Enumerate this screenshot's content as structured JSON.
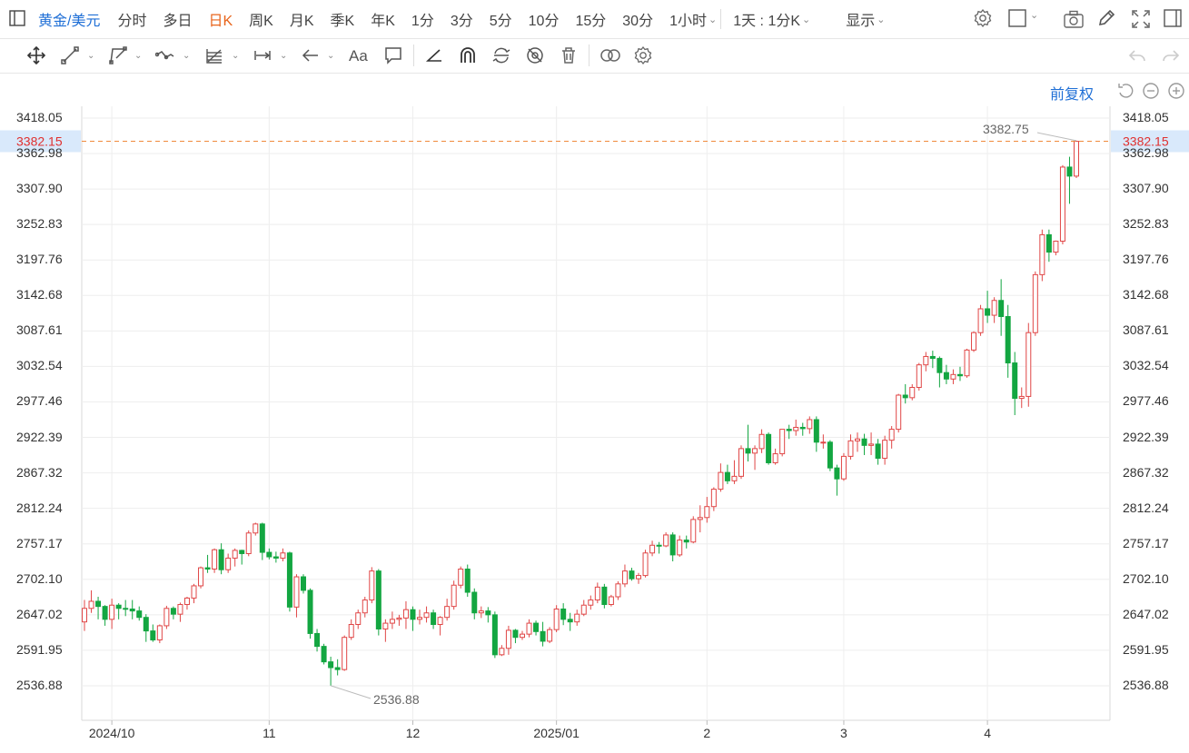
{
  "toolbar": {
    "symbol": "黄金/美元",
    "periods": [
      "分时",
      "多日",
      "日K",
      "周K",
      "月K",
      "季K",
      "年K",
      "1分",
      "3分",
      "5分",
      "10分",
      "15分",
      "30分",
      "1小时"
    ],
    "active_period": "日K",
    "interval_select": "1天 : 1分K",
    "display_label": "显示"
  },
  "adjust_label": "前复权",
  "colors": {
    "up": "#e04646",
    "down": "#13a641",
    "accent": "#1f6fd6",
    "price_line": "#f08a3c",
    "active_tab": "#e8641b"
  },
  "chart_data": {
    "type": "candlestick",
    "y_ticks": [
      "3418.05",
      "3362.98",
      "3307.90",
      "3252.83",
      "3197.76",
      "3142.68",
      "3087.61",
      "3032.54",
      "2977.46",
      "2922.39",
      "2867.32",
      "2812.24",
      "2757.17",
      "2702.10",
      "2647.02",
      "2591.95",
      "2536.88"
    ],
    "ylim": [
      2513.0,
      3440.0
    ],
    "x_labels": [
      "2024/10",
      "11",
      "12",
      "2025/01",
      "2",
      "3",
      "4"
    ],
    "current_price": "3382.15",
    "max_label": "3382.75",
    "min_label": "2536.88",
    "candles": [
      {
        "date": "2024-09-25",
        "o": 2636,
        "h": 2670,
        "l": 2622,
        "c": 2657
      },
      {
        "date": "2024-09-26",
        "o": 2657,
        "h": 2685,
        "l": 2650,
        "c": 2668
      },
      {
        "date": "2024-09-27",
        "o": 2668,
        "h": 2675,
        "l": 2640,
        "c": 2660
      },
      {
        "date": "2024-09-30",
        "o": 2660,
        "h": 2662,
        "l": 2630,
        "c": 2640
      },
      {
        "date": "2024-10-01",
        "o": 2640,
        "h": 2672,
        "l": 2625,
        "c": 2662
      },
      {
        "date": "2024-10-02",
        "o": 2662,
        "h": 2665,
        "l": 2640,
        "c": 2657
      },
      {
        "date": "2024-10-03",
        "o": 2657,
        "h": 2670,
        "l": 2645,
        "c": 2656
      },
      {
        "date": "2024-10-04",
        "o": 2656,
        "h": 2670,
        "l": 2640,
        "c": 2653
      },
      {
        "date": "2024-10-07",
        "o": 2653,
        "h": 2660,
        "l": 2638,
        "c": 2643
      },
      {
        "date": "2024-10-08",
        "o": 2643,
        "h": 2648,
        "l": 2605,
        "c": 2622
      },
      {
        "date": "2024-10-09",
        "o": 2622,
        "h": 2632,
        "l": 2605,
        "c": 2608
      },
      {
        "date": "2024-10-10",
        "o": 2608,
        "h": 2632,
        "l": 2603,
        "c": 2630
      },
      {
        "date": "2024-10-11",
        "o": 2630,
        "h": 2661,
        "l": 2625,
        "c": 2657
      },
      {
        "date": "2024-10-14",
        "o": 2657,
        "h": 2660,
        "l": 2640,
        "c": 2648
      },
      {
        "date": "2024-10-15",
        "o": 2648,
        "h": 2666,
        "l": 2636,
        "c": 2663
      },
      {
        "date": "2024-10-16",
        "o": 2663,
        "h": 2675,
        "l": 2655,
        "c": 2673
      },
      {
        "date": "2024-10-17",
        "o": 2673,
        "h": 2695,
        "l": 2665,
        "c": 2692
      },
      {
        "date": "2024-10-18",
        "o": 2692,
        "h": 2722,
        "l": 2688,
        "c": 2720
      },
      {
        "date": "2024-10-21",
        "o": 2720,
        "h": 2740,
        "l": 2712,
        "c": 2718
      },
      {
        "date": "2024-10-22",
        "o": 2718,
        "h": 2750,
        "l": 2712,
        "c": 2748
      },
      {
        "date": "2024-10-23",
        "o": 2748,
        "h": 2758,
        "l": 2710,
        "c": 2717
      },
      {
        "date": "2024-10-24",
        "o": 2717,
        "h": 2742,
        "l": 2712,
        "c": 2735
      },
      {
        "date": "2024-10-25",
        "o": 2735,
        "h": 2750,
        "l": 2722,
        "c": 2747
      },
      {
        "date": "2024-10-28",
        "o": 2747,
        "h": 2748,
        "l": 2725,
        "c": 2742
      },
      {
        "date": "2024-10-29",
        "o": 2742,
        "h": 2778,
        "l": 2738,
        "c": 2774
      },
      {
        "date": "2024-10-30",
        "o": 2774,
        "h": 2790,
        "l": 2770,
        "c": 2788
      },
      {
        "date": "2024-10-31",
        "o": 2788,
        "h": 2790,
        "l": 2732,
        "c": 2744
      },
      {
        "date": "2024-11-01",
        "o": 2744,
        "h": 2750,
        "l": 2733,
        "c": 2737
      },
      {
        "date": "2024-11-04",
        "o": 2737,
        "h": 2745,
        "l": 2728,
        "c": 2735
      },
      {
        "date": "2024-11-05",
        "o": 2735,
        "h": 2750,
        "l": 2730,
        "c": 2743
      },
      {
        "date": "2024-11-06",
        "o": 2743,
        "h": 2745,
        "l": 2652,
        "c": 2659
      },
      {
        "date": "2024-11-07",
        "o": 2659,
        "h": 2710,
        "l": 2643,
        "c": 2706
      },
      {
        "date": "2024-11-08",
        "o": 2706,
        "h": 2710,
        "l": 2680,
        "c": 2685
      },
      {
        "date": "2024-11-11",
        "o": 2685,
        "h": 2688,
        "l": 2610,
        "c": 2618
      },
      {
        "date": "2024-11-12",
        "o": 2618,
        "h": 2625,
        "l": 2590,
        "c": 2598
      },
      {
        "date": "2024-11-13",
        "o": 2598,
        "h": 2602,
        "l": 2570,
        "c": 2574
      },
      {
        "date": "2024-11-14",
        "o": 2574,
        "h": 2582,
        "l": 2537,
        "c": 2565
      },
      {
        "date": "2024-11-15",
        "o": 2565,
        "h": 2578,
        "l": 2553,
        "c": 2562
      },
      {
        "date": "2024-11-18",
        "o": 2562,
        "h": 2615,
        "l": 2560,
        "c": 2612
      },
      {
        "date": "2024-11-19",
        "o": 2612,
        "h": 2640,
        "l": 2608,
        "c": 2632
      },
      {
        "date": "2024-11-20",
        "o": 2632,
        "h": 2655,
        "l": 2625,
        "c": 2650
      },
      {
        "date": "2024-11-21",
        "o": 2650,
        "h": 2675,
        "l": 2643,
        "c": 2670
      },
      {
        "date": "2024-11-22",
        "o": 2670,
        "h": 2721,
        "l": 2665,
        "c": 2715
      },
      {
        "date": "2024-11-25",
        "o": 2715,
        "h": 2718,
        "l": 2615,
        "c": 2625
      },
      {
        "date": "2024-11-26",
        "o": 2625,
        "h": 2640,
        "l": 2605,
        "c": 2634
      },
      {
        "date": "2024-11-27",
        "o": 2634,
        "h": 2652,
        "l": 2625,
        "c": 2640
      },
      {
        "date": "2024-11-28",
        "o": 2640,
        "h": 2647,
        "l": 2630,
        "c": 2642
      },
      {
        "date": "2024-11-29",
        "o": 2642,
        "h": 2668,
        "l": 2625,
        "c": 2655
      },
      {
        "date": "2024-12-02",
        "o": 2655,
        "h": 2660,
        "l": 2622,
        "c": 2640
      },
      {
        "date": "2024-12-03",
        "o": 2640,
        "h": 2655,
        "l": 2632,
        "c": 2643
      },
      {
        "date": "2024-12-04",
        "o": 2643,
        "h": 2660,
        "l": 2635,
        "c": 2650
      },
      {
        "date": "2024-12-05",
        "o": 2650,
        "h": 2655,
        "l": 2625,
        "c": 2632
      },
      {
        "date": "2024-12-06",
        "o": 2632,
        "h": 2645,
        "l": 2615,
        "c": 2643
      },
      {
        "date": "2024-12-09",
        "o": 2643,
        "h": 2672,
        "l": 2638,
        "c": 2660
      },
      {
        "date": "2024-12-10",
        "o": 2660,
        "h": 2700,
        "l": 2655,
        "c": 2693
      },
      {
        "date": "2024-12-11",
        "o": 2693,
        "h": 2722,
        "l": 2688,
        "c": 2718
      },
      {
        "date": "2024-12-12",
        "o": 2718,
        "h": 2725,
        "l": 2675,
        "c": 2682
      },
      {
        "date": "2024-12-13",
        "o": 2682,
        "h": 2688,
        "l": 2640,
        "c": 2650
      },
      {
        "date": "2024-12-16",
        "o": 2650,
        "h": 2660,
        "l": 2642,
        "c": 2653
      },
      {
        "date": "2024-12-17",
        "o": 2653,
        "h": 2659,
        "l": 2635,
        "c": 2647
      },
      {
        "date": "2024-12-18",
        "o": 2647,
        "h": 2652,
        "l": 2580,
        "c": 2585
      },
      {
        "date": "2024-12-19",
        "o": 2585,
        "h": 2600,
        "l": 2583,
        "c": 2595
      },
      {
        "date": "2024-12-20",
        "o": 2595,
        "h": 2630,
        "l": 2585,
        "c": 2623
      },
      {
        "date": "2024-12-23",
        "o": 2623,
        "h": 2625,
        "l": 2603,
        "c": 2612
      },
      {
        "date": "2024-12-24",
        "o": 2612,
        "h": 2622,
        "l": 2608,
        "c": 2617
      },
      {
        "date": "2024-12-26",
        "o": 2617,
        "h": 2640,
        "l": 2612,
        "c": 2634
      },
      {
        "date": "2024-12-27",
        "o": 2634,
        "h": 2638,
        "l": 2615,
        "c": 2621
      },
      {
        "date": "2024-12-30",
        "o": 2621,
        "h": 2636,
        "l": 2598,
        "c": 2606
      },
      {
        "date": "2024-12-31",
        "o": 2606,
        "h": 2628,
        "l": 2603,
        "c": 2624
      },
      {
        "date": "2025-01-02",
        "o": 2624,
        "h": 2662,
        "l": 2620,
        "c": 2656
      },
      {
        "date": "2025-01-03",
        "o": 2656,
        "h": 2665,
        "l": 2631,
        "c": 2640
      },
      {
        "date": "2025-01-06",
        "o": 2640,
        "h": 2650,
        "l": 2622,
        "c": 2636
      },
      {
        "date": "2025-01-07",
        "o": 2636,
        "h": 2655,
        "l": 2630,
        "c": 2648
      },
      {
        "date": "2025-01-08",
        "o": 2648,
        "h": 2670,
        "l": 2645,
        "c": 2662
      },
      {
        "date": "2025-01-09",
        "o": 2662,
        "h": 2677,
        "l": 2655,
        "c": 2670
      },
      {
        "date": "2025-01-10",
        "o": 2670,
        "h": 2697,
        "l": 2665,
        "c": 2690
      },
      {
        "date": "2025-01-13",
        "o": 2690,
        "h": 2695,
        "l": 2657,
        "c": 2663
      },
      {
        "date": "2025-01-14",
        "o": 2663,
        "h": 2678,
        "l": 2660,
        "c": 2675
      },
      {
        "date": "2025-01-15",
        "o": 2675,
        "h": 2699,
        "l": 2670,
        "c": 2695
      },
      {
        "date": "2025-01-16",
        "o": 2695,
        "h": 2725,
        "l": 2690,
        "c": 2715
      },
      {
        "date": "2025-01-17",
        "o": 2715,
        "h": 2720,
        "l": 2700,
        "c": 2703
      },
      {
        "date": "2025-01-20",
        "o": 2703,
        "h": 2712,
        "l": 2695,
        "c": 2708
      },
      {
        "date": "2025-01-21",
        "o": 2708,
        "h": 2748,
        "l": 2705,
        "c": 2743
      },
      {
        "date": "2025-01-22",
        "o": 2743,
        "h": 2762,
        "l": 2738,
        "c": 2755
      },
      {
        "date": "2025-01-23",
        "o": 2755,
        "h": 2760,
        "l": 2742,
        "c": 2754
      },
      {
        "date": "2025-01-24",
        "o": 2754,
        "h": 2775,
        "l": 2752,
        "c": 2771
      },
      {
        "date": "2025-01-27",
        "o": 2771,
        "h": 2775,
        "l": 2730,
        "c": 2740
      },
      {
        "date": "2025-01-28",
        "o": 2740,
        "h": 2770,
        "l": 2737,
        "c": 2763
      },
      {
        "date": "2025-01-29",
        "o": 2763,
        "h": 2770,
        "l": 2750,
        "c": 2760
      },
      {
        "date": "2025-01-30",
        "o": 2760,
        "h": 2800,
        "l": 2758,
        "c": 2795
      },
      {
        "date": "2025-01-31",
        "o": 2795,
        "h": 2817,
        "l": 2775,
        "c": 2798
      },
      {
        "date": "2025-02-03",
        "o": 2798,
        "h": 2830,
        "l": 2790,
        "c": 2815
      },
      {
        "date": "2025-02-04",
        "o": 2815,
        "h": 2845,
        "l": 2808,
        "c": 2842
      },
      {
        "date": "2025-02-05",
        "o": 2842,
        "h": 2882,
        "l": 2838,
        "c": 2868
      },
      {
        "date": "2025-02-06",
        "o": 2868,
        "h": 2880,
        "l": 2850,
        "c": 2855
      },
      {
        "date": "2025-02-07",
        "o": 2855,
        "h": 2887,
        "l": 2850,
        "c": 2862
      },
      {
        "date": "2025-02-10",
        "o": 2862,
        "h": 2910,
        "l": 2858,
        "c": 2905
      },
      {
        "date": "2025-02-11",
        "o": 2905,
        "h": 2942,
        "l": 2885,
        "c": 2898
      },
      {
        "date": "2025-02-12",
        "o": 2898,
        "h": 2910,
        "l": 2872,
        "c": 2905
      },
      {
        "date": "2025-02-13",
        "o": 2905,
        "h": 2935,
        "l": 2898,
        "c": 2927
      },
      {
        "date": "2025-02-14",
        "o": 2927,
        "h": 2930,
        "l": 2880,
        "c": 2883
      },
      {
        "date": "2025-02-17",
        "o": 2883,
        "h": 2905,
        "l": 2880,
        "c": 2897
      },
      {
        "date": "2025-02-18",
        "o": 2897,
        "h": 2935,
        "l": 2893,
        "c": 2935
      },
      {
        "date": "2025-02-19",
        "o": 2935,
        "h": 2942,
        "l": 2920,
        "c": 2933
      },
      {
        "date": "2025-02-20",
        "o": 2933,
        "h": 2950,
        "l": 2925,
        "c": 2938
      },
      {
        "date": "2025-02-21",
        "o": 2938,
        "h": 2945,
        "l": 2925,
        "c": 2936
      },
      {
        "date": "2025-02-24",
        "o": 2936,
        "h": 2955,
        "l": 2928,
        "c": 2950
      },
      {
        "date": "2025-02-25",
        "o": 2950,
        "h": 2955,
        "l": 2900,
        "c": 2915
      },
      {
        "date": "2025-02-26",
        "o": 2915,
        "h": 2927,
        "l": 2905,
        "c": 2915
      },
      {
        "date": "2025-02-27",
        "o": 2915,
        "h": 2918,
        "l": 2870,
        "c": 2875
      },
      {
        "date": "2025-02-28",
        "o": 2875,
        "h": 2880,
        "l": 2832,
        "c": 2858
      },
      {
        "date": "2025-03-03",
        "o": 2858,
        "h": 2898,
        "l": 2855,
        "c": 2893
      },
      {
        "date": "2025-03-04",
        "o": 2893,
        "h": 2927,
        "l": 2888,
        "c": 2917
      },
      {
        "date": "2025-03-05",
        "o": 2917,
        "h": 2930,
        "l": 2900,
        "c": 2920
      },
      {
        "date": "2025-03-06",
        "o": 2920,
        "h": 2928,
        "l": 2895,
        "c": 2910
      },
      {
        "date": "2025-03-07",
        "o": 2910,
        "h": 2930,
        "l": 2895,
        "c": 2912
      },
      {
        "date": "2025-03-10",
        "o": 2912,
        "h": 2920,
        "l": 2880,
        "c": 2890
      },
      {
        "date": "2025-03-11",
        "o": 2890,
        "h": 2925,
        "l": 2880,
        "c": 2918
      },
      {
        "date": "2025-03-12",
        "o": 2918,
        "h": 2940,
        "l": 2905,
        "c": 2935
      },
      {
        "date": "2025-03-13",
        "o": 2935,
        "h": 2990,
        "l": 2930,
        "c": 2988
      },
      {
        "date": "2025-03-14",
        "o": 2988,
        "h": 3005,
        "l": 2975,
        "c": 2984
      },
      {
        "date": "2025-03-17",
        "o": 2984,
        "h": 3005,
        "l": 2980,
        "c": 3000
      },
      {
        "date": "2025-03-18",
        "o": 3000,
        "h": 3038,
        "l": 2995,
        "c": 3035
      },
      {
        "date": "2025-03-19",
        "o": 3035,
        "h": 3055,
        "l": 3025,
        "c": 3048
      },
      {
        "date": "2025-03-20",
        "o": 3048,
        "h": 3057,
        "l": 3030,
        "c": 3045
      },
      {
        "date": "2025-03-21",
        "o": 3045,
        "h": 3048,
        "l": 3000,
        "c": 3023
      },
      {
        "date": "2025-03-24",
        "o": 3023,
        "h": 3035,
        "l": 3005,
        "c": 3013
      },
      {
        "date": "2025-03-25",
        "o": 3013,
        "h": 3028,
        "l": 3005,
        "c": 3020
      },
      {
        "date": "2025-03-26",
        "o": 3020,
        "h": 3032,
        "l": 3010,
        "c": 3018
      },
      {
        "date": "2025-03-27",
        "o": 3018,
        "h": 3060,
        "l": 3015,
        "c": 3058
      },
      {
        "date": "2025-03-28",
        "o": 3058,
        "h": 3087,
        "l": 3055,
        "c": 3085
      },
      {
        "date": "2025-03-31",
        "o": 3085,
        "h": 3128,
        "l": 3080,
        "c": 3122
      },
      {
        "date": "2025-04-01",
        "o": 3122,
        "h": 3150,
        "l": 3100,
        "c": 3112
      },
      {
        "date": "2025-04-02",
        "o": 3112,
        "h": 3140,
        "l": 3100,
        "c": 3135
      },
      {
        "date": "2025-04-03",
        "o": 3135,
        "h": 3168,
        "l": 3080,
        "c": 3110
      },
      {
        "date": "2025-04-04",
        "o": 3110,
        "h": 3128,
        "l": 3015,
        "c": 3038
      },
      {
        "date": "2025-04-07",
        "o": 3038,
        "h": 3055,
        "l": 2957,
        "c": 2983
      },
      {
        "date": "2025-04-08",
        "o": 2983,
        "h": 3000,
        "l": 2968,
        "c": 2986
      },
      {
        "date": "2025-04-09",
        "o": 2986,
        "h": 3100,
        "l": 2970,
        "c": 3085
      },
      {
        "date": "2025-04-10",
        "o": 3085,
        "h": 3180,
        "l": 3080,
        "c": 3175
      },
      {
        "date": "2025-04-11",
        "o": 3175,
        "h": 3245,
        "l": 3165,
        "c": 3237
      },
      {
        "date": "2025-04-14",
        "o": 3237,
        "h": 3245,
        "l": 3195,
        "c": 3210
      },
      {
        "date": "2025-04-15",
        "o": 3210,
        "h": 3228,
        "l": 3205,
        "c": 3227
      },
      {
        "date": "2025-04-16",
        "o": 3227,
        "h": 3345,
        "l": 3222,
        "c": 3342
      },
      {
        "date": "2025-04-17",
        "o": 3342,
        "h": 3358,
        "l": 3285,
        "c": 3328
      },
      {
        "date": "2025-04-18",
        "o": 3328,
        "h": 3383,
        "l": 3325,
        "c": 3382
      }
    ]
  }
}
